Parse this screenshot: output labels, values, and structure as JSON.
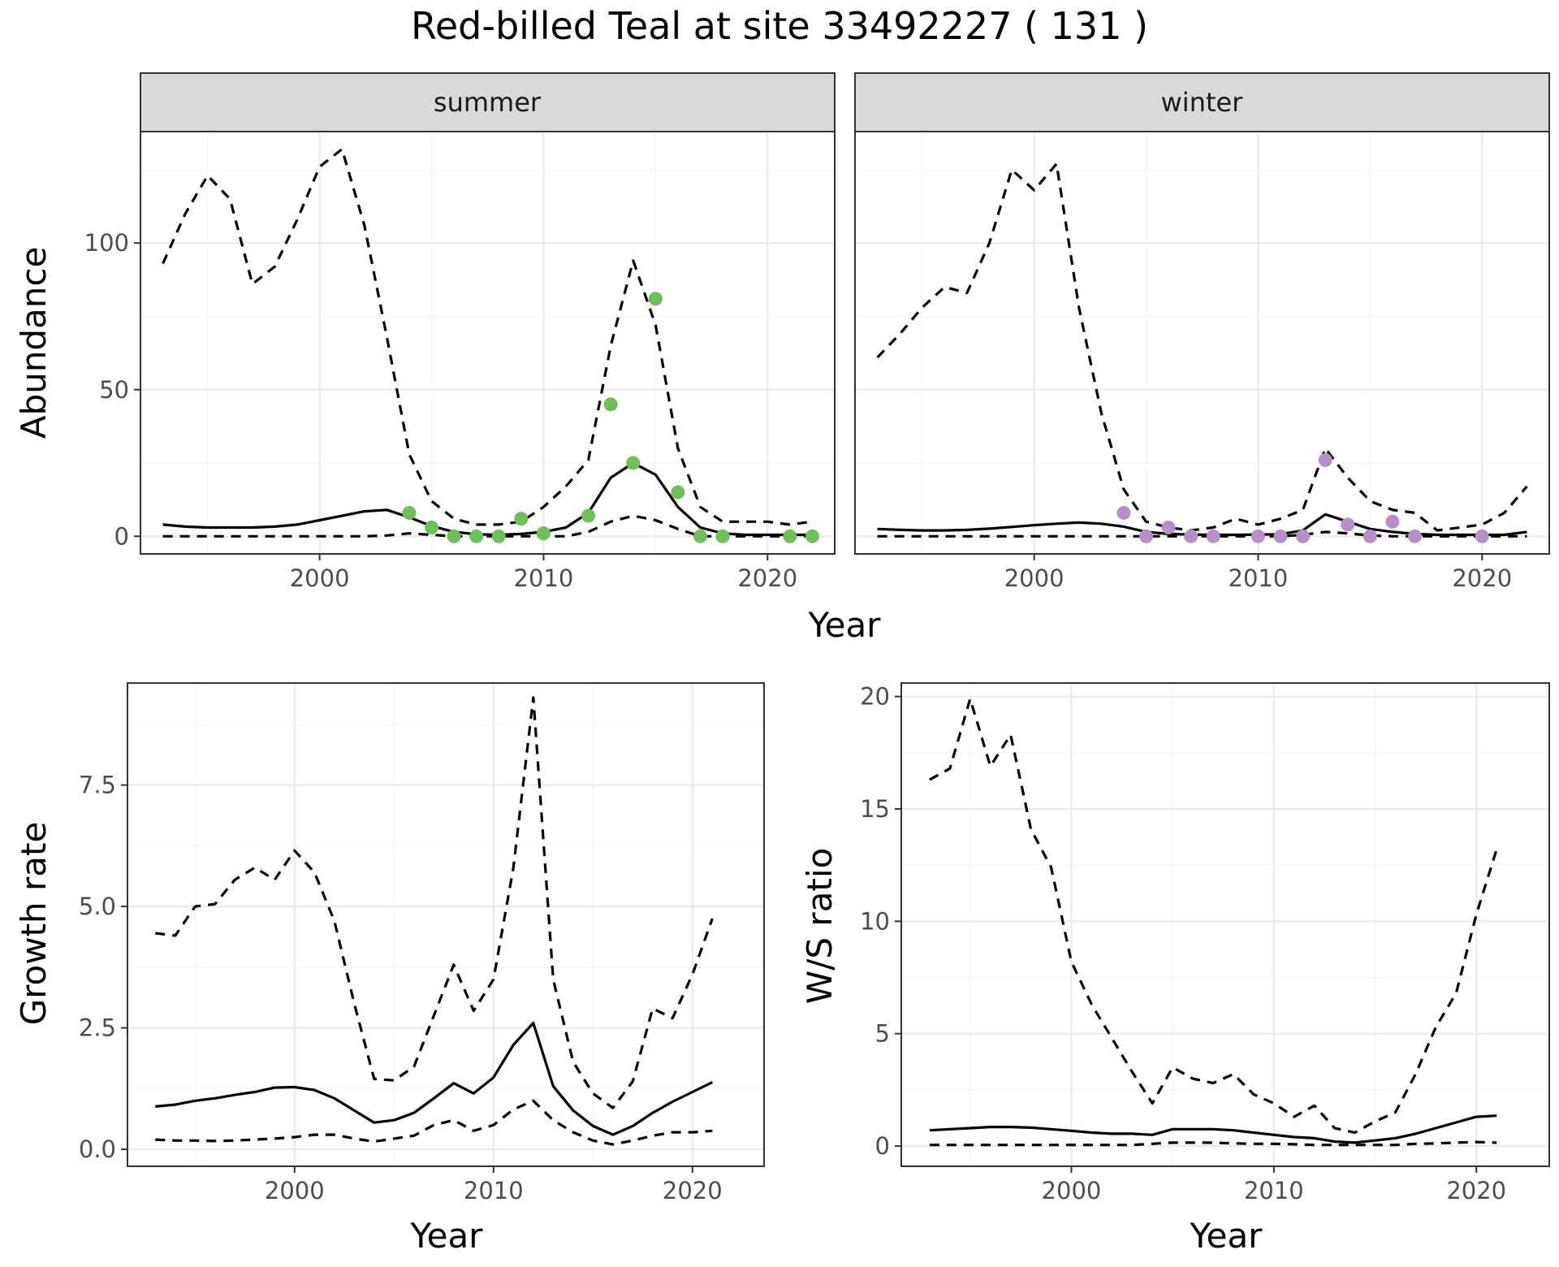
{
  "title": "Red-billed Teal at site 33492227 ( 131 )",
  "colors": {
    "summer_points": "#6dbf58",
    "winter_points": "#b68fc9",
    "lines": "#000000",
    "strip": "#d9d9d9"
  },
  "chart_data": [
    {
      "type": "line",
      "facet": "summer",
      "xlabel": "Year",
      "ylabel": "Abundance",
      "xlim": [
        1992,
        2023
      ],
      "ylim": [
        -6,
        138
      ],
      "xticks": [
        2000,
        2010,
        2020
      ],
      "yticks": [
        0,
        50,
        100
      ],
      "grid": true,
      "x": [
        1993,
        1994,
        1995,
        1996,
        1997,
        1998,
        1999,
        2000,
        2001,
        2002,
        2003,
        2004,
        2005,
        2006,
        2007,
        2008,
        2009,
        2010,
        2011,
        2012,
        2013,
        2014,
        2015,
        2016,
        2017,
        2018,
        2019,
        2020,
        2021,
        2022
      ],
      "series": [
        {
          "style": "solid",
          "values": [
            4,
            3.3,
            3,
            3,
            3,
            3.3,
            4,
            5.5,
            7,
            8.5,
            9,
            6.5,
            3.5,
            1.5,
            0.7,
            0.5,
            0.8,
            1.5,
            3,
            8,
            20,
            25,
            21,
            10,
            3,
            1,
            0.5,
            0.5,
            0.5,
            0.5
          ]
        },
        {
          "style": "dashed",
          "values": [
            93,
            110,
            123,
            115,
            86,
            92,
            108,
            126,
            132,
            106,
            68,
            28,
            12,
            6,
            4,
            4,
            5,
            10,
            17,
            26,
            65,
            94,
            72,
            30,
            10,
            5,
            5,
            5,
            4,
            5
          ]
        },
        {
          "style": "dashed",
          "values": [
            0,
            0,
            0,
            0,
            0,
            0,
            0,
            0,
            0,
            0,
            0.3,
            1,
            0.5,
            0,
            0,
            0,
            0,
            0,
            0,
            1.5,
            5,
            7,
            5.5,
            2.5,
            0,
            0,
            0,
            0,
            0,
            0
          ]
        }
      ],
      "points": {
        "x": [
          2004,
          2005,
          2006,
          2007,
          2008,
          2009,
          2010,
          2012,
          2013,
          2014,
          2015,
          2016,
          2017,
          2018,
          2021,
          2022
        ],
        "y": [
          8,
          3,
          0,
          0,
          0,
          6,
          1,
          7,
          45,
          25,
          81,
          15,
          0,
          0,
          0,
          0
        ]
      }
    },
    {
      "type": "line",
      "facet": "winter",
      "xlabel": "Year",
      "ylabel": "Abundance",
      "xlim": [
        1992,
        2023
      ],
      "ylim": [
        -6,
        138
      ],
      "xticks": [
        2000,
        2010,
        2020
      ],
      "yticks": [
        0,
        50,
        100
      ],
      "grid": true,
      "x": [
        1993,
        1994,
        1995,
        1996,
        1997,
        1998,
        1999,
        2000,
        2001,
        2002,
        2003,
        2004,
        2005,
        2006,
        2007,
        2008,
        2009,
        2010,
        2011,
        2012,
        2013,
        2014,
        2015,
        2016,
        2017,
        2018,
        2019,
        2020,
        2021,
        2022
      ],
      "series": [
        {
          "style": "solid",
          "values": [
            2.5,
            2.2,
            2,
            2,
            2.2,
            2.6,
            3.2,
            3.8,
            4.3,
            4.7,
            4.3,
            3.3,
            1.5,
            0.8,
            0.6,
            0.5,
            0.5,
            0.6,
            0.7,
            2,
            7.5,
            5,
            2.5,
            1.5,
            0.8,
            0.5,
            0.5,
            0.5,
            0.5,
            1.5
          ]
        },
        {
          "style": "dashed",
          "values": [
            61,
            69,
            78,
            85,
            83,
            100,
            125,
            118,
            127,
            78,
            42,
            16,
            5,
            3,
            2,
            3,
            6,
            4,
            6,
            9,
            30,
            20,
            12,
            9,
            8,
            2,
            3,
            4,
            8,
            17
          ]
        },
        {
          "style": "dashed",
          "values": [
            0,
            0,
            0,
            0,
            0,
            0,
            0,
            0,
            0,
            0,
            0,
            0,
            0,
            0,
            0,
            0,
            0,
            0,
            0,
            0.5,
            1.5,
            1,
            0.3,
            0,
            0,
            0,
            0,
            0,
            0,
            0
          ]
        }
      ],
      "points": {
        "x": [
          2004,
          2005,
          2006,
          2007,
          2008,
          2010,
          2011,
          2012,
          2013,
          2014,
          2015,
          2016,
          2017,
          2020
        ],
        "y": [
          8,
          0,
          3,
          0,
          0,
          0,
          0,
          0,
          26,
          4,
          0,
          5,
          0,
          0
        ]
      }
    },
    {
      "type": "line",
      "xlabel": "Year",
      "ylabel": "Growth rate",
      "xlim": [
        1991.6,
        2023.6
      ],
      "ylim": [
        -0.35,
        9.6
      ],
      "xticks": [
        2000,
        2010,
        2020
      ],
      "yticks": [
        0.0,
        2.5,
        5.0,
        7.5
      ],
      "ytick_labels": [
        "0.0",
        "2.5",
        "5.0",
        "7.5"
      ],
      "grid": true,
      "x": [
        1993,
        1994,
        1995,
        1996,
        1997,
        1998,
        1999,
        2000,
        2001,
        2002,
        2003,
        2004,
        2005,
        2006,
        2007,
        2008,
        2009,
        2010,
        2011,
        2012,
        2013,
        2014,
        2015,
        2016,
        2017,
        2018,
        2019,
        2020,
        2021
      ],
      "series": [
        {
          "style": "solid",
          "values": [
            0.88,
            0.92,
            1.0,
            1.05,
            1.12,
            1.18,
            1.27,
            1.28,
            1.22,
            1.05,
            0.8,
            0.55,
            0.6,
            0.75,
            1.05,
            1.36,
            1.15,
            1.48,
            2.15,
            2.6,
            1.3,
            0.8,
            0.48,
            0.3,
            0.48,
            0.75,
            0.98,
            1.18,
            1.38
          ]
        },
        {
          "style": "dashed",
          "values": [
            4.45,
            4.4,
            5.0,
            5.05,
            5.55,
            5.8,
            5.55,
            6.15,
            5.7,
            4.7,
            3.0,
            1.45,
            1.42,
            1.7,
            2.75,
            3.8,
            2.85,
            3.5,
            5.8,
            9.3,
            3.5,
            1.8,
            1.15,
            0.85,
            1.4,
            2.9,
            2.7,
            3.6,
            4.75
          ]
        },
        {
          "style": "dashed",
          "values": [
            0.2,
            0.18,
            0.18,
            0.17,
            0.18,
            0.2,
            0.22,
            0.25,
            0.3,
            0.3,
            0.22,
            0.16,
            0.22,
            0.28,
            0.5,
            0.6,
            0.38,
            0.5,
            0.82,
            1.0,
            0.6,
            0.35,
            0.18,
            0.1,
            0.18,
            0.28,
            0.35,
            0.35,
            0.38
          ]
        }
      ]
    },
    {
      "type": "line",
      "xlabel": "Year",
      "ylabel": "W/S ratio",
      "xlim": [
        1991.6,
        2023.6
      ],
      "ylim": [
        -0.9,
        20.6
      ],
      "xticks": [
        2000,
        2010,
        2020
      ],
      "yticks": [
        0,
        5,
        10,
        15,
        20
      ],
      "grid": true,
      "x": [
        1993,
        1994,
        1995,
        1996,
        1997,
        1998,
        1999,
        2000,
        2001,
        2002,
        2003,
        2004,
        2005,
        2006,
        2007,
        2008,
        2009,
        2010,
        2011,
        2012,
        2013,
        2014,
        2015,
        2016,
        2017,
        2018,
        2019,
        2020,
        2021
      ],
      "series": [
        {
          "style": "solid",
          "values": [
            0.7,
            0.75,
            0.8,
            0.85,
            0.85,
            0.82,
            0.75,
            0.68,
            0.6,
            0.55,
            0.55,
            0.5,
            0.75,
            0.75,
            0.75,
            0.7,
            0.6,
            0.5,
            0.4,
            0.35,
            0.2,
            0.15,
            0.25,
            0.35,
            0.55,
            0.8,
            1.05,
            1.3,
            1.35
          ]
        },
        {
          "style": "dashed",
          "values": [
            16.3,
            16.8,
            19.9,
            16.9,
            18.3,
            14.1,
            12.4,
            8.2,
            6.3,
            4.8,
            3.3,
            1.9,
            3.5,
            3.0,
            2.8,
            3.2,
            2.3,
            1.9,
            1.3,
            1.8,
            0.8,
            0.6,
            1.1,
            1.5,
            3.2,
            5.3,
            6.8,
            10.3,
            13.2
          ]
        },
        {
          "style": "dashed",
          "values": [
            0.05,
            0.05,
            0.05,
            0.05,
            0.05,
            0.05,
            0.05,
            0.05,
            0.05,
            0.05,
            0.05,
            0.1,
            0.15,
            0.15,
            0.15,
            0.12,
            0.1,
            0.1,
            0.08,
            0.05,
            0.05,
            0.05,
            0.05,
            0.05,
            0.1,
            0.12,
            0.15,
            0.18,
            0.15
          ]
        }
      ]
    }
  ]
}
